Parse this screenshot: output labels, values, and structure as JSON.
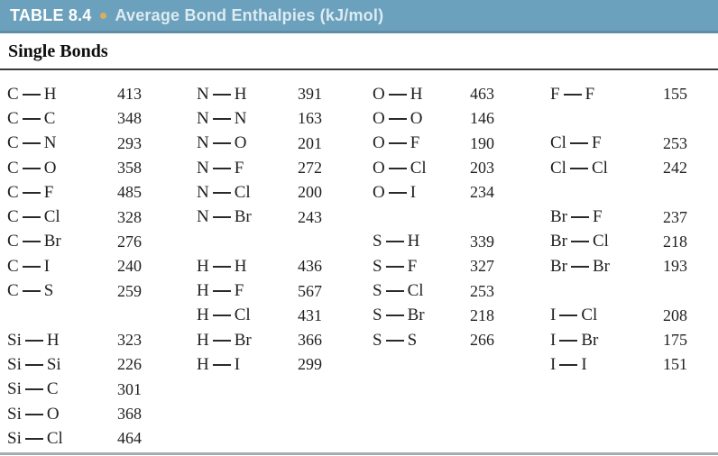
{
  "header": {
    "table_label": "TABLE 8.4",
    "title": "Average Bond Enthalpies (kJ/mol)",
    "band_color": "#6ba1bc",
    "band_edge_color": "#5f8ca6",
    "label_color": "#ffffff",
    "title_color": "#ddebf2",
    "bullet_color": "#d9af5e"
  },
  "section": {
    "subtitle": "Single Bonds"
  },
  "table": {
    "units": "kJ/mol",
    "rows": [
      [
        "C—H",
        "413",
        "N—H",
        "391",
        "O—H",
        "463",
        "F—F",
        "155"
      ],
      [
        "C—C",
        "348",
        "N—N",
        "163",
        "O—O",
        "146",
        "",
        ""
      ],
      [
        "C—N",
        "293",
        "N—O",
        "201",
        "O—F",
        "190",
        "Cl—F",
        "253"
      ],
      [
        "C—O",
        "358",
        "N—F",
        "272",
        "O—Cl",
        "203",
        "Cl—Cl",
        "242"
      ],
      [
        "C—F",
        "485",
        "N—Cl",
        "200",
        "O—I",
        "234",
        "",
        ""
      ],
      [
        "C—Cl",
        "328",
        "N—Br",
        "243",
        "",
        "",
        "Br—F",
        "237"
      ],
      [
        "C—Br",
        "276",
        "",
        "",
        "S—H",
        "339",
        "Br—Cl",
        "218"
      ],
      [
        "C—I",
        "240",
        "H—H",
        "436",
        "S—F",
        "327",
        "Br—Br",
        "193"
      ],
      [
        "C—S",
        "259",
        "H—F",
        "567",
        "S—Cl",
        "253",
        "",
        ""
      ],
      [
        "",
        "",
        "H—Cl",
        "431",
        "S—Br",
        "218",
        "I—Cl",
        "208"
      ],
      [
        "Si—H",
        "323",
        "H—Br",
        "366",
        "S—S",
        "266",
        "I—Br",
        "175"
      ],
      [
        "Si—Si",
        "226",
        "H—I",
        "299",
        "",
        "",
        "I—I",
        "151"
      ],
      [
        "Si—C",
        "301",
        "",
        "",
        "",
        "",
        "",
        ""
      ],
      [
        "Si—O",
        "368",
        "",
        "",
        "",
        "",
        "",
        ""
      ],
      [
        "Si—Cl",
        "464",
        "",
        "",
        "",
        "",
        "",
        ""
      ]
    ]
  }
}
